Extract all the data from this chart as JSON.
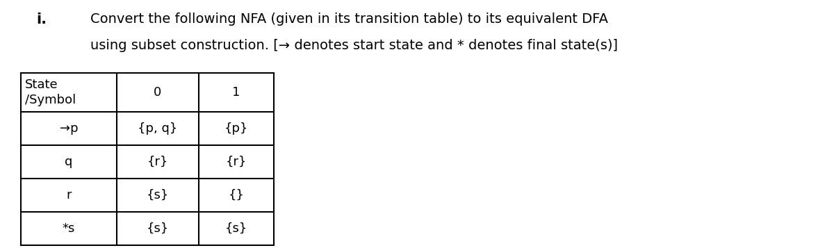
{
  "title_i": "i.",
  "title_text_line1": "Convert the following NFA (given in its transition table) to its equivalent DFA",
  "title_text_line2": "using subset construction. [→ denotes start state and * denotes final state(s)]",
  "bg_color": "#ffffff",
  "text_color": "#000000",
  "table_rows": [
    [
      "→p",
      "{p, q}",
      "{p}"
    ],
    [
      "q",
      "{r}",
      "{r}"
    ],
    [
      "r",
      "{s}",
      "{}"
    ],
    [
      "*s",
      "{s}",
      "{s}"
    ]
  ],
  "font_size_title_i": 15,
  "font_size_title_text": 14,
  "font_size_table": 13
}
